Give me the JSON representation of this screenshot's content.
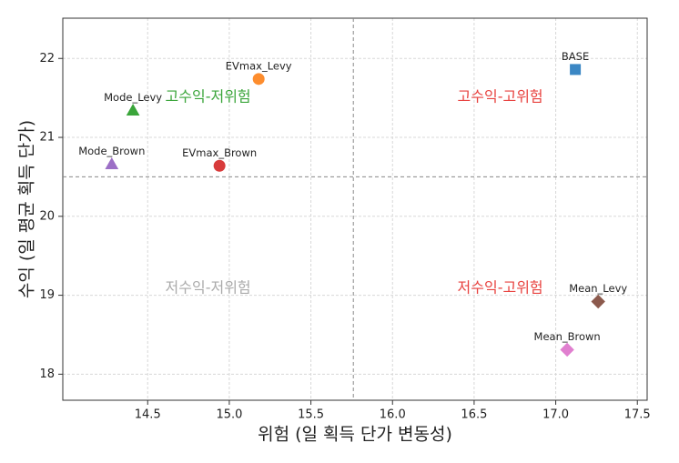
{
  "chart_data": {
    "type": "scatter",
    "x_label": "위험 (일 획득 단가 변동성)",
    "y_label": "수익 (일 평균 획득 단가)",
    "xlim": [
      13.98,
      17.56
    ],
    "ylim": [
      17.67,
      22.51
    ],
    "xticks": [
      14.5,
      {
        "value": 15,
        "label": "15.0"
      },
      15.5,
      {
        "value": 16,
        "label": "16.0"
      },
      16.5,
      {
        "value": 17,
        "label": "17.0"
      },
      17.5
    ],
    "yticks": [
      18,
      19,
      20,
      21,
      22
    ],
    "grid": true,
    "vline": 15.76,
    "hline": 20.5,
    "quadrants": [
      {
        "text": "고수익-저위험",
        "color": "#3aa53a",
        "position": "top-left"
      },
      {
        "text": "고수익-고위험",
        "color": "#e8423f",
        "position": "top-right"
      },
      {
        "text": "저수익-저위험",
        "color": "#aaaaaa",
        "position": "bottom-left"
      },
      {
        "text": "저수익-고위험",
        "color": "#e8423f",
        "position": "bottom-right"
      }
    ],
    "series": [
      {
        "name": "BASE",
        "color": "#3b87c4",
        "marker": "square",
        "x": [
          17.12
        ],
        "values": [
          21.86
        ]
      },
      {
        "name": "EVmax_Levy",
        "color": "#fd8d2e",
        "marker": "circle",
        "x": [
          15.18
        ],
        "values": [
          21.74
        ]
      },
      {
        "name": "Mode_Levy",
        "color": "#3aa53a",
        "marker": "triangle",
        "x": [
          14.41
        ],
        "values": [
          21.34
        ]
      },
      {
        "name": "Mode_Brown",
        "color": "#9c6fc6",
        "marker": "triangle",
        "x": [
          14.28
        ],
        "values": [
          20.66
        ]
      },
      {
        "name": "EVmax_Brown",
        "color": "#d83b3b",
        "marker": "circle",
        "x": [
          14.94
        ],
        "values": [
          20.64
        ]
      },
      {
        "name": "Mean_Levy",
        "color": "#8c5a4d",
        "marker": "diamond",
        "x": [
          17.26
        ],
        "values": [
          18.92
        ]
      },
      {
        "name": "Mean_Brown",
        "color": "#e07fcf",
        "marker": "diamond",
        "x": [
          17.07
        ],
        "values": [
          18.31
        ]
      }
    ]
  }
}
